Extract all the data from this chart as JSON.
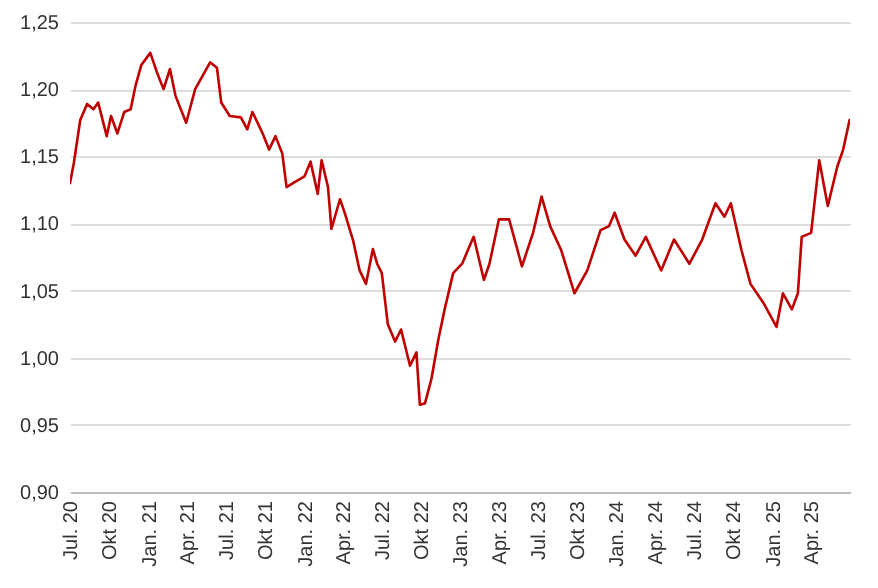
{
  "chart_data": {
    "type": "line",
    "xlim": [
      "2020-07-01",
      "2025-07-01"
    ],
    "ylim": [
      0.9,
      1.25
    ],
    "yticks": [
      {
        "value": 0.9,
        "label": "0,90"
      },
      {
        "value": 0.95,
        "label": "0,95"
      },
      {
        "value": 1.0,
        "label": "1,00"
      },
      {
        "value": 1.05,
        "label": "1,05"
      },
      {
        "value": 1.1,
        "label": "1,10"
      },
      {
        "value": 1.15,
        "label": "1,15"
      },
      {
        "value": 1.2,
        "label": "1,20"
      },
      {
        "value": 1.25,
        "label": "1,25"
      }
    ],
    "xticks": [
      {
        "value": "2020-07-01",
        "label": "Jul. 20"
      },
      {
        "value": "2020-10-01",
        "label": "Okt 20"
      },
      {
        "value": "2021-01-01",
        "label": "Jan. 21"
      },
      {
        "value": "2021-04-01",
        "label": "Apr. 21"
      },
      {
        "value": "2021-07-01",
        "label": "Jul. 21"
      },
      {
        "value": "2021-10-01",
        "label": "Okt 21"
      },
      {
        "value": "2022-01-01",
        "label": "Jan. 22"
      },
      {
        "value": "2022-04-01",
        "label": "Apr. 22"
      },
      {
        "value": "2022-07-01",
        "label": "Jul. 22"
      },
      {
        "value": "2022-10-01",
        "label": "Okt 22"
      },
      {
        "value": "2023-01-01",
        "label": "Jan. 23"
      },
      {
        "value": "2023-04-01",
        "label": "Apr. 23"
      },
      {
        "value": "2023-07-01",
        "label": "Jul. 23"
      },
      {
        "value": "2023-10-01",
        "label": "Okt 23"
      },
      {
        "value": "2024-01-01",
        "label": "Jan. 24"
      },
      {
        "value": "2024-04-01",
        "label": "Apr. 24"
      },
      {
        "value": "2024-07-01",
        "label": "Jul. 24"
      },
      {
        "value": "2024-10-01",
        "label": "Okt 24"
      },
      {
        "value": "2025-01-01",
        "label": "Jan. 25"
      },
      {
        "value": "2025-04-01",
        "label": "Apr. 25"
      }
    ],
    "grid": "y",
    "marker": "none",
    "line_style": "solid",
    "series": [
      {
        "color": "#c00000",
        "x": [
          "2020-07-01",
          "2020-07-10",
          "2020-07-25",
          "2020-08-10",
          "2020-08-25",
          "2020-09-05",
          "2020-09-25",
          "2020-10-05",
          "2020-10-20",
          "2020-11-05",
          "2020-11-20",
          "2020-12-01",
          "2020-12-15",
          "2021-01-05",
          "2021-01-20",
          "2021-02-05",
          "2021-02-20",
          "2021-03-05",
          "2021-03-30",
          "2021-04-20",
          "2021-05-25",
          "2021-06-10",
          "2021-06-20",
          "2021-07-10",
          "2021-08-05",
          "2021-08-20",
          "2021-09-01",
          "2021-09-25",
          "2021-10-10",
          "2021-10-25",
          "2021-11-10",
          "2021-11-20",
          "2021-12-10",
          "2022-01-01",
          "2022-01-15",
          "2022-02-01",
          "2022-02-10",
          "2022-02-25",
          "2022-03-05",
          "2022-03-25",
          "2022-04-05",
          "2022-04-25",
          "2022-05-10",
          "2022-05-25",
          "2022-06-10",
          "2022-06-20",
          "2022-07-01",
          "2022-07-15",
          "2022-08-01",
          "2022-08-15",
          "2022-09-05",
          "2022-09-20",
          "2022-09-28",
          "2022-10-10",
          "2022-10-25",
          "2022-11-10",
          "2022-11-25",
          "2022-12-15",
          "2023-01-05",
          "2023-01-25",
          "2023-02-01",
          "2023-02-25",
          "2023-03-10",
          "2023-04-01",
          "2023-04-25",
          "2023-05-25",
          "2023-06-20",
          "2023-07-10",
          "2023-07-30",
          "2023-08-25",
          "2023-09-25",
          "2023-10-25",
          "2023-11-25",
          "2023-12-15",
          "2023-12-28",
          "2024-01-20",
          "2024-02-15",
          "2024-03-10",
          "2024-04-15",
          "2024-05-15",
          "2024-06-20",
          "2024-07-20",
          "2024-08-20",
          "2024-09-10",
          "2024-09-25",
          "2024-10-20",
          "2024-11-10",
          "2024-12-10",
          "2025-01-10",
          "2025-01-25",
          "2025-02-15",
          "2025-03-01",
          "2025-03-10",
          "2025-04-01",
          "2025-04-20",
          "2025-05-10",
          "2025-06-01",
          "2025-06-15",
          "2025-06-30"
        ],
        "values": [
          1.13,
          1.145,
          1.177,
          1.189,
          1.185,
          1.19,
          1.165,
          1.18,
          1.167,
          1.183,
          1.185,
          1.202,
          1.218,
          1.227,
          1.213,
          1.2,
          1.215,
          1.195,
          1.175,
          1.2,
          1.22,
          1.216,
          1.19,
          1.18,
          1.179,
          1.17,
          1.183,
          1.167,
          1.155,
          1.165,
          1.152,
          1.127,
          1.131,
          1.135,
          1.146,
          1.122,
          1.147,
          1.127,
          1.096,
          1.118,
          1.108,
          1.087,
          1.065,
          1.055,
          1.081,
          1.07,
          1.063,
          1.025,
          1.012,
          1.021,
          0.994,
          1.004,
          0.965,
          0.966,
          0.984,
          1.013,
          1.036,
          1.063,
          1.07,
          1.085,
          1.09,
          1.058,
          1.07,
          1.103,
          1.103,
          1.068,
          1.093,
          1.12,
          1.098,
          1.08,
          1.048,
          1.065,
          1.095,
          1.098,
          1.108,
          1.088,
          1.076,
          1.09,
          1.065,
          1.088,
          1.07,
          1.088,
          1.115,
          1.105,
          1.115,
          1.08,
          1.055,
          1.041,
          1.023,
          1.048,
          1.036,
          1.048,
          1.09,
          1.093,
          1.147,
          1.113,
          1.142,
          1.155,
          1.177
        ]
      }
    ]
  }
}
